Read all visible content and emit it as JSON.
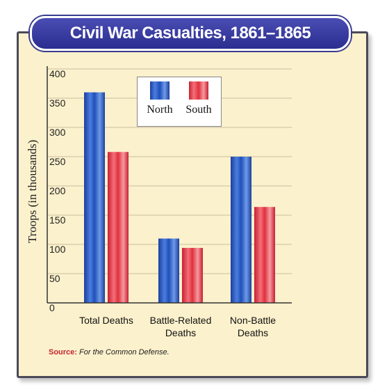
{
  "title": "Civil War Casualties, 1861–1865",
  "source": {
    "label": "Source",
    "text": "For the Common Defense."
  },
  "legend": {
    "north": "North",
    "south": "South"
  },
  "colors": {
    "north": "#1f4fb8",
    "south": "#e0303c",
    "grid": "#c9bfa0",
    "axis": "#333333"
  },
  "chart_data": {
    "type": "bar",
    "title": "Civil War Casualties, 1861–1865",
    "ylabel": "Troops (in thousands)",
    "xlabel": "",
    "ylim": [
      0,
      400
    ],
    "yticks": [
      0,
      50,
      100,
      150,
      200,
      250,
      300,
      350,
      400
    ],
    "categories": [
      [
        "Total Deaths"
      ],
      [
        "Battle-Related",
        "Deaths"
      ],
      [
        "Non-Battle",
        "Deaths"
      ]
    ],
    "series": [
      {
        "name": "North",
        "values": [
          360,
          110,
          250
        ]
      },
      {
        "name": "South",
        "values": [
          258,
          94,
          164
        ]
      }
    ],
    "grid": true,
    "legend_position": "top-center"
  }
}
